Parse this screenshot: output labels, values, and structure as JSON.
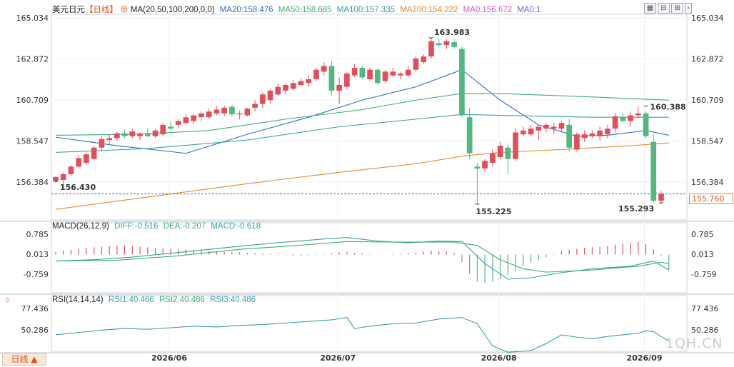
{
  "legend_main": {
    "symbol": "美元日元",
    "period_tag": "【日线】",
    "ma_label": "MA(20,50,100,200,0,0)",
    "ma20": "MA20:158.476",
    "ma50": "MA50:158.685",
    "ma100": "MA100:157.335",
    "ma200": "MA200:154.222",
    "ma0a": "MA0:156.672",
    "ma0b": "MA0:1"
  },
  "legend_macd": {
    "label": "MACD(26,12,9)",
    "diff": "DIFF:-0.516",
    "dea": "DEA:-0.207",
    "macd": "MACD:-0.618"
  },
  "legend_rsi": {
    "label": "RSI(14,14,14)",
    "rsi1": "RSI1:40.486",
    "rsi2": "RSI2:40.486",
    "rsi3": "RSI3:40.486"
  },
  "toolbar": {
    "icons": [
      "grid-icon",
      "zoom-out-icon",
      "zoom-in-icon",
      "left-arrow-icon",
      "right-arrow-icon"
    ]
  },
  "period_button": "日线 ▲",
  "current_price": "155.760",
  "watermark": "1QH.CN",
  "colors": {
    "up": "#e0505c",
    "down": "#55b680",
    "ma20": "#2e6ec9",
    "ma50": "#3fae73",
    "ma100": "#3aa0a8",
    "ma200": "#e58a28",
    "accent": "#e0501d"
  },
  "chart_data": [
    {
      "type": "candlestick",
      "price_axis_ticks": [
        "165.034",
        "162.872",
        "160.709",
        "158.547",
        "156.384"
      ],
      "ylim": [
        155.0,
        165.3
      ],
      "x_ticks": [
        "2026/06",
        "2026/07",
        "2026/08",
        "2026/09"
      ],
      "annotations": [
        {
          "text": "156.430",
          "value": 156.43
        },
        {
          "text": "163.983",
          "value": 163.983
        },
        {
          "text": "155.225",
          "value": 155.225
        },
        {
          "text": "155.293",
          "value": 155.293
        },
        {
          "text": "160.388",
          "value": 160.388
        }
      ],
      "current_price": 155.76,
      "candles": [
        {
          "o": 156.45,
          "h": 156.7,
          "l": 156.35,
          "c": 156.65
        },
        {
          "o": 156.5,
          "h": 156.9,
          "l": 156.25,
          "c": 156.8
        },
        {
          "o": 156.8,
          "h": 157.3,
          "l": 156.7,
          "c": 157.2
        },
        {
          "o": 157.2,
          "h": 157.8,
          "l": 157.1,
          "c": 157.65
        },
        {
          "o": 157.4,
          "h": 157.95,
          "l": 157.3,
          "c": 157.85
        },
        {
          "o": 157.6,
          "h": 158.3,
          "l": 157.5,
          "c": 158.2
        },
        {
          "o": 158.2,
          "h": 158.8,
          "l": 158.05,
          "c": 158.65
        },
        {
          "o": 158.6,
          "h": 158.9,
          "l": 158.4,
          "c": 158.7
        },
        {
          "o": 158.7,
          "h": 159.05,
          "l": 158.55,
          "c": 158.95
        },
        {
          "o": 158.95,
          "h": 159.15,
          "l": 158.7,
          "c": 158.8
        },
        {
          "o": 158.8,
          "h": 159.2,
          "l": 158.7,
          "c": 159.05
        },
        {
          "o": 158.8,
          "h": 159.0,
          "l": 158.6,
          "c": 158.95
        },
        {
          "o": 158.95,
          "h": 159.2,
          "l": 158.75,
          "c": 158.8
        },
        {
          "o": 158.8,
          "h": 159.2,
          "l": 158.7,
          "c": 159.1
        },
        {
          "o": 158.9,
          "h": 159.5,
          "l": 158.8,
          "c": 159.4
        },
        {
          "o": 159.3,
          "h": 159.6,
          "l": 159.1,
          "c": 159.2
        },
        {
          "o": 159.4,
          "h": 159.7,
          "l": 159.2,
          "c": 159.6
        },
        {
          "o": 159.5,
          "h": 159.95,
          "l": 159.4,
          "c": 159.8
        },
        {
          "o": 159.6,
          "h": 159.95,
          "l": 159.45,
          "c": 159.9
        },
        {
          "o": 159.8,
          "h": 160.1,
          "l": 159.6,
          "c": 160.0
        },
        {
          "o": 159.8,
          "h": 160.25,
          "l": 159.7,
          "c": 160.1
        },
        {
          "o": 160.0,
          "h": 160.4,
          "l": 159.9,
          "c": 160.2
        },
        {
          "o": 160.0,
          "h": 160.4,
          "l": 159.85,
          "c": 160.3
        },
        {
          "o": 160.35,
          "h": 160.45,
          "l": 159.85,
          "c": 159.95
        },
        {
          "o": 159.95,
          "h": 160.15,
          "l": 159.7,
          "c": 160.0
        },
        {
          "o": 159.9,
          "h": 160.3,
          "l": 159.85,
          "c": 160.25
        },
        {
          "o": 160.3,
          "h": 160.7,
          "l": 160.1,
          "c": 160.5
        },
        {
          "o": 160.5,
          "h": 161.1,
          "l": 160.3,
          "c": 161.0
        },
        {
          "o": 160.7,
          "h": 161.3,
          "l": 160.5,
          "c": 161.2
        },
        {
          "o": 161.0,
          "h": 161.6,
          "l": 160.9,
          "c": 161.4
        },
        {
          "o": 161.2,
          "h": 161.6,
          "l": 161.0,
          "c": 161.5
        },
        {
          "o": 161.3,
          "h": 161.75,
          "l": 161.2,
          "c": 161.6
        },
        {
          "o": 161.5,
          "h": 161.85,
          "l": 161.4,
          "c": 161.7
        },
        {
          "o": 161.6,
          "h": 162.0,
          "l": 161.4,
          "c": 161.8
        },
        {
          "o": 161.8,
          "h": 162.4,
          "l": 161.7,
          "c": 162.3
        },
        {
          "o": 162.2,
          "h": 162.7,
          "l": 162.0,
          "c": 162.5
        },
        {
          "o": 162.5,
          "h": 162.75,
          "l": 160.9,
          "c": 161.2
        },
        {
          "o": 161.2,
          "h": 161.9,
          "l": 160.5,
          "c": 161.5
        },
        {
          "o": 161.4,
          "h": 162.2,
          "l": 161.3,
          "c": 162.1
        },
        {
          "o": 162.0,
          "h": 162.6,
          "l": 161.9,
          "c": 162.4
        },
        {
          "o": 162.4,
          "h": 162.5,
          "l": 161.8,
          "c": 161.9
        },
        {
          "o": 161.8,
          "h": 162.4,
          "l": 161.7,
          "c": 162.3
        },
        {
          "o": 162.3,
          "h": 162.4,
          "l": 161.5,
          "c": 161.6
        },
        {
          "o": 161.7,
          "h": 162.3,
          "l": 161.6,
          "c": 162.2
        },
        {
          "o": 162.0,
          "h": 162.4,
          "l": 161.9,
          "c": 162.2
        },
        {
          "o": 162.0,
          "h": 162.2,
          "l": 161.8,
          "c": 162.1
        },
        {
          "o": 162.0,
          "h": 162.5,
          "l": 161.9,
          "c": 162.3
        },
        {
          "o": 162.3,
          "h": 163.0,
          "l": 162.2,
          "c": 162.9
        },
        {
          "o": 162.7,
          "h": 163.1,
          "l": 162.6,
          "c": 163.0
        },
        {
          "o": 163.0,
          "h": 163.983,
          "l": 162.9,
          "c": 163.8
        },
        {
          "o": 163.7,
          "h": 163.95,
          "l": 163.5,
          "c": 163.6
        },
        {
          "o": 163.6,
          "h": 163.9,
          "l": 163.4,
          "c": 163.8
        },
        {
          "o": 163.75,
          "h": 163.9,
          "l": 163.4,
          "c": 163.5
        },
        {
          "o": 163.4,
          "h": 163.5,
          "l": 159.8,
          "c": 159.9
        },
        {
          "o": 159.8,
          "h": 160.3,
          "l": 157.6,
          "c": 157.9
        },
        {
          "o": 157.2,
          "h": 157.4,
          "l": 155.225,
          "c": 157.1
        },
        {
          "o": 157.1,
          "h": 157.6,
          "l": 156.9,
          "c": 157.5
        },
        {
          "o": 157.4,
          "h": 158.1,
          "l": 157.2,
          "c": 157.9
        },
        {
          "o": 157.7,
          "h": 158.5,
          "l": 157.6,
          "c": 158.3
        },
        {
          "o": 158.2,
          "h": 158.4,
          "l": 156.8,
          "c": 157.6
        },
        {
          "o": 157.6,
          "h": 159.2,
          "l": 157.5,
          "c": 159.0
        },
        {
          "o": 158.9,
          "h": 159.3,
          "l": 158.8,
          "c": 159.1
        },
        {
          "o": 158.9,
          "h": 159.4,
          "l": 158.8,
          "c": 159.2
        },
        {
          "o": 159.1,
          "h": 159.4,
          "l": 158.6,
          "c": 159.3
        },
        {
          "o": 159.2,
          "h": 159.5,
          "l": 159.0,
          "c": 159.4
        },
        {
          "o": 159.2,
          "h": 159.5,
          "l": 158.9,
          "c": 159.3
        },
        {
          "o": 159.2,
          "h": 159.6,
          "l": 159.0,
          "c": 159.5
        },
        {
          "o": 159.4,
          "h": 159.7,
          "l": 158.0,
          "c": 158.2
        },
        {
          "o": 158.1,
          "h": 159.0,
          "l": 158.0,
          "c": 158.9
        },
        {
          "o": 158.7,
          "h": 159.1,
          "l": 158.5,
          "c": 158.9
        },
        {
          "o": 158.8,
          "h": 159.1,
          "l": 158.7,
          "c": 158.95
        },
        {
          "o": 158.8,
          "h": 159.3,
          "l": 158.6,
          "c": 159.1
        },
        {
          "o": 158.9,
          "h": 159.4,
          "l": 158.7,
          "c": 159.2
        },
        {
          "o": 159.2,
          "h": 160.0,
          "l": 159.0,
          "c": 159.85
        },
        {
          "o": 159.8,
          "h": 160.05,
          "l": 159.5,
          "c": 159.6
        },
        {
          "o": 159.6,
          "h": 160.1,
          "l": 159.3,
          "c": 159.9
        },
        {
          "o": 159.9,
          "h": 160.388,
          "l": 159.7,
          "c": 160.0
        },
        {
          "o": 160.0,
          "h": 160.1,
          "l": 158.7,
          "c": 158.8
        },
        {
          "o": 158.5,
          "h": 158.9,
          "l": 155.293,
          "c": 155.4
        },
        {
          "o": 155.4,
          "h": 155.9,
          "l": 155.3,
          "c": 155.76
        }
      ],
      "series": [
        {
          "name": "MA20",
          "color": "#2e6ec9",
          "values": [
            [
              0,
              158.75
            ],
            [
              8,
              158.3
            ],
            [
              17,
              157.9
            ],
            [
              25,
              158.9
            ],
            [
              33,
              159.8
            ],
            [
              40,
              160.7
            ],
            [
              47,
              161.4
            ],
            [
              53,
              162.3
            ],
            [
              58,
              160.7
            ],
            [
              63,
              159.4
            ],
            [
              68,
              158.8
            ],
            [
              72,
              158.85
            ],
            [
              75,
              159.0
            ],
            [
              77,
              159.1
            ],
            [
              80,
              158.85
            ]
          ]
        },
        {
          "name": "MA50",
          "color": "#3fae73",
          "values": [
            [
              0,
              158.85
            ],
            [
              10,
              158.9
            ],
            [
              20,
              159.1
            ],
            [
              30,
              159.7
            ],
            [
              40,
              160.2
            ],
            [
              47,
              160.7
            ],
            [
              53,
              161.05
            ],
            [
              58,
              161.05
            ],
            [
              68,
              160.9
            ],
            [
              77,
              160.75
            ],
            [
              80,
              160.7
            ]
          ]
        },
        {
          "name": "MA100",
          "color": "#3aa0a8",
          "values": [
            [
              0,
              157.95
            ],
            [
              12,
              158.15
            ],
            [
              25,
              158.6
            ],
            [
              37,
              159.3
            ],
            [
              47,
              159.7
            ],
            [
              53,
              159.95
            ],
            [
              58,
              159.9
            ],
            [
              70,
              159.8
            ],
            [
              80,
              159.8
            ]
          ]
        },
        {
          "name": "MA200",
          "color": "#e58a28",
          "values": [
            [
              0,
              154.95
            ],
            [
              12,
              155.6
            ],
            [
              25,
              156.3
            ],
            [
              37,
              156.9
            ],
            [
              47,
              157.35
            ],
            [
              53,
              157.75
            ],
            [
              58,
              157.95
            ],
            [
              66,
              158.1
            ],
            [
              75,
              158.3
            ],
            [
              80,
              158.45
            ]
          ]
        }
      ]
    },
    {
      "type": "macd",
      "axis_ticks": [
        "0.785",
        "0.013",
        "-0.759"
      ],
      "ylim": [
        -1.3,
        1.15
      ],
      "diff": [
        [
          0,
          -0.25
        ],
        [
          5,
          -0.2
        ],
        [
          10,
          -0.1
        ],
        [
          15,
          0.05
        ],
        [
          20,
          0.2
        ],
        [
          25,
          0.35
        ],
        [
          30,
          0.48
        ],
        [
          35,
          0.6
        ],
        [
          38,
          0.66
        ],
        [
          42,
          0.52
        ],
        [
          46,
          0.45
        ],
        [
          50,
          0.52
        ],
        [
          53,
          0.5
        ],
        [
          56,
          -0.35
        ],
        [
          59,
          -0.95
        ],
        [
          62,
          -0.9
        ],
        [
          66,
          -0.7
        ],
        [
          70,
          -0.55
        ],
        [
          75,
          -0.45
        ],
        [
          78,
          -0.25
        ],
        [
          80,
          -0.6
        ]
      ],
      "dea": [
        [
          0,
          -0.25
        ],
        [
          8,
          -0.22
        ],
        [
          16,
          -0.05
        ],
        [
          24,
          0.2
        ],
        [
          32,
          0.36
        ],
        [
          38,
          0.5
        ],
        [
          45,
          0.48
        ],
        [
          52,
          0.48
        ],
        [
          55,
          0.35
        ],
        [
          58,
          -0.2
        ],
        [
          61,
          -0.55
        ],
        [
          64,
          -0.68
        ],
        [
          70,
          -0.6
        ],
        [
          76,
          -0.45
        ],
        [
          79,
          -0.3
        ],
        [
          80,
          -0.35
        ]
      ],
      "hist": [
        0.1,
        0.15,
        0.18,
        0.22,
        0.25,
        0.28,
        0.3,
        0.32,
        0.34,
        0.35,
        0.33,
        0.3,
        0.28,
        0.26,
        0.24,
        0.22,
        0.2,
        0.2,
        0.18,
        0.16,
        0.14,
        0.12,
        0.1,
        0.1,
        0.08,
        0.06,
        0.05,
        0.04,
        0.04,
        0.02,
        -0.02,
        -0.05,
        -0.06,
        -0.04,
        -0.02,
        0.02,
        0.05,
        0.08,
        0.1,
        0.06,
        0.04,
        0.02,
        0.01,
        0.0,
        -0.02,
        0.03,
        0.05,
        0.08,
        0.1,
        0.14,
        0.12,
        0.1,
        0.06,
        -0.3,
        -0.75,
        -1.05,
        -1.1,
        -1.05,
        -0.95,
        -0.8,
        -0.65,
        -0.45,
        -0.3,
        -0.2,
        -0.1,
        0.02,
        0.12,
        0.18,
        0.22,
        0.26,
        0.28,
        0.3,
        0.34,
        0.38,
        0.42,
        0.46,
        0.48,
        0.4,
        0.2,
        -0.05,
        -0.6
      ]
    },
    {
      "type": "rsi",
      "axis_ticks": [
        "77.436",
        "50.286"
      ],
      "ylim": [
        20,
        90
      ],
      "rsi": [
        [
          0,
          44
        ],
        [
          3,
          47
        ],
        [
          6,
          50
        ],
        [
          9,
          52
        ],
        [
          12,
          51
        ],
        [
          15,
          53
        ],
        [
          18,
          55
        ],
        [
          21,
          54
        ],
        [
          24,
          56
        ],
        [
          27,
          57
        ],
        [
          30,
          59
        ],
        [
          33,
          61
        ],
        [
          36,
          63
        ],
        [
          38,
          66
        ],
        [
          39,
          52
        ],
        [
          41,
          55
        ],
        [
          44,
          58
        ],
        [
          47,
          59
        ],
        [
          50,
          64
        ],
        [
          53,
          66
        ],
        [
          55,
          58
        ],
        [
          57,
          30
        ],
        [
          59,
          22
        ],
        [
          62,
          24
        ],
        [
          64,
          33
        ],
        [
          66,
          44
        ],
        [
          68,
          41
        ],
        [
          70,
          39
        ],
        [
          72,
          42
        ],
        [
          74,
          44
        ],
        [
          76,
          46
        ],
        [
          77,
          49
        ],
        [
          78,
          48
        ],
        [
          79,
          42
        ],
        [
          80,
          36
        ]
      ]
    }
  ]
}
